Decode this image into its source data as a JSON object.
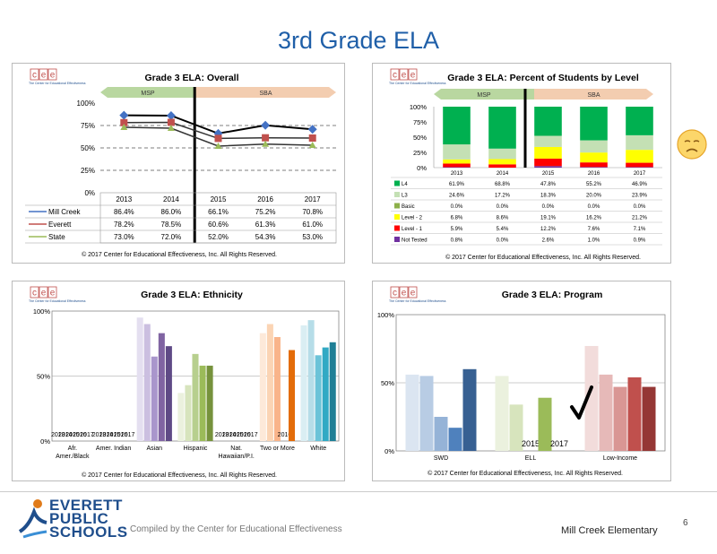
{
  "page_title": "3rd Grade ELA",
  "copyright": "© 2017 Center for Educational Effectiveness, Inc. All Rights Reserved.",
  "cee_logo_letters": [
    "c",
    "e",
    "e"
  ],
  "cee_logo_sub": "The Center for Educational Effectiveness",
  "footer": {
    "district_logo": [
      "EVERETT",
      "PUBLIC",
      "SCHOOLS"
    ],
    "compiled": "Compiled by the Center for Educational Effectiveness",
    "school": "Mill Creek Elementary",
    "page_number": "6"
  },
  "colors": {
    "title_blue": "#1f5fa8",
    "msp": "#b9d7a0",
    "sba": "#f3cdb0"
  },
  "chart_data": [
    {
      "type": "line",
      "title": "Grade 3 ELA: Overall",
      "bands": [
        "MSP",
        "SBA"
      ],
      "categories": [
        "2013",
        "2014",
        "2015",
        "2016",
        "2017"
      ],
      "ylim": [
        0,
        100
      ],
      "yticks": [
        "0%",
        "25%",
        "50%",
        "75%",
        "100%"
      ],
      "series": [
        {
          "name": "Mill Creek",
          "values": [
            86.4,
            86.0,
            66.1,
            75.2,
            70.8
          ],
          "labels": [
            "86.4%",
            "86.0%",
            "66.1%",
            "75.2%",
            "70.8%"
          ],
          "color": "#4472c4"
        },
        {
          "name": "Everett",
          "values": [
            78.2,
            78.5,
            60.6,
            61.3,
            61.0
          ],
          "labels": [
            "78.2%",
            "78.5%",
            "60.6%",
            "61.3%",
            "61.0%"
          ],
          "color": "#c0504d"
        },
        {
          "name": "State",
          "values": [
            73.0,
            72.0,
            52.0,
            54.3,
            53.0
          ],
          "labels": [
            "73.0%",
            "72.0%",
            "52.0%",
            "54.3%",
            "53.0%"
          ],
          "color": "#9bbb59"
        }
      ]
    },
    {
      "type": "bar",
      "stacked": true,
      "title": "Grade 3 ELA: Percent of Students by Level",
      "bands": [
        "MSP",
        "SBA"
      ],
      "categories": [
        "2013",
        "2014",
        "2015",
        "2016",
        "2017"
      ],
      "ylim": [
        0,
        100
      ],
      "yticks": [
        "0%",
        "25%",
        "50%",
        "75%",
        "100%"
      ],
      "series": [
        {
          "name": "L4",
          "values": [
            61.9,
            68.8,
            47.8,
            55.2,
            46.9
          ],
          "labels": [
            "61.9%",
            "68.8%",
            "47.8%",
            "55.2%",
            "46.9%"
          ],
          "color": "#00b050"
        },
        {
          "name": "L3",
          "values": [
            24.6,
            17.2,
            18.3,
            20.0,
            23.9
          ],
          "labels": [
            "24.6%",
            "17.2%",
            "18.3%",
            "20.0%",
            "23.9%"
          ],
          "color": "#c4e0b4"
        },
        {
          "name": "Basic",
          "values": [
            0.0,
            0.0,
            0.0,
            0.0,
            0.0
          ],
          "labels": [
            "0.0%",
            "0.0%",
            "0.0%",
            "0.0%",
            "0.0%"
          ],
          "color": "#8db04a"
        },
        {
          "name": "Level - 2",
          "values": [
            6.8,
            8.6,
            19.1,
            16.2,
            21.2
          ],
          "labels": [
            "6.8%",
            "8.6%",
            "19.1%",
            "16.2%",
            "21.2%"
          ],
          "color": "#ffff00"
        },
        {
          "name": "Level - 1",
          "values": [
            5.9,
            5.4,
            12.2,
            7.6,
            7.1
          ],
          "labels": [
            "5.9%",
            "5.4%",
            "12.2%",
            "7.6%",
            "7.1%"
          ],
          "color": "#ff0000"
        },
        {
          "name": "Not Tested",
          "values": [
            0.8,
            0.0,
            2.6,
            1.0,
            0.9
          ],
          "labels": [
            "0.8%",
            "0.0%",
            "2.6%",
            "1.0%",
            "0.9%"
          ],
          "color": "#7030a0"
        }
      ]
    },
    {
      "type": "bar",
      "title": "Grade 3 ELA: Ethnicity",
      "categories": [
        "Afr. Amer./Black",
        "Amer. Indian",
        "Asian",
        "Hispanic",
        "Nat. Hawaiian/P.I.",
        "Two or More",
        "White"
      ],
      "years": [
        "2013",
        "2014",
        "2015",
        "2016",
        "2017"
      ],
      "ylim": [
        0,
        100
      ],
      "yticks": [
        "0%",
        "50%",
        "100%"
      ],
      "groups": [
        {
          "values": [
            null,
            null,
            null,
            null,
            null
          ],
          "colors": [
            "#d9d9d9",
            "#bfbfbf",
            "#a6a6a6",
            "#8c8c8c",
            "#737373"
          ]
        },
        {
          "values": [
            null,
            null,
            null,
            null,
            null
          ],
          "colors": [
            "#d9d9d9",
            "#bfbfbf",
            "#a6a6a6",
            "#8c8c8c",
            "#737373"
          ]
        },
        {
          "values": [
            95,
            90,
            65,
            83,
            73
          ],
          "colors": [
            "#e4dff0",
            "#cbbfe0",
            "#a996cc",
            "#8064a2",
            "#5f4a86"
          ]
        },
        {
          "values": [
            37,
            43,
            67,
            58,
            58
          ],
          "colors": [
            "#ebf1de",
            "#d7e4bd",
            "#b7cf8e",
            "#9bbb59",
            "#76923c"
          ]
        },
        {
          "values": [
            null,
            null,
            null,
            null,
            null
          ],
          "colors": [
            "#d9d9d9",
            "#bfbfbf",
            "#a6a6a6",
            "#8c8c8c",
            "#737373"
          ]
        },
        {
          "values": [
            83,
            90,
            80,
            null,
            70
          ],
          "colors": [
            "#fde9d9",
            "#fbd4b4",
            "#f9b48a",
            "#f79646",
            "#e36c09"
          ]
        },
        {
          "values": [
            89,
            93,
            66,
            72,
            76
          ],
          "colors": [
            "#daeef3",
            "#b6dde8",
            "#6bc3d8",
            "#31a9c4",
            "#1f7f96"
          ]
        }
      ]
    },
    {
      "type": "bar",
      "title": "Grade 3 ELA: Program",
      "categories": [
        "SWD",
        "ELL",
        "Low-Income"
      ],
      "years": [
        "2013",
        "2014",
        "2015",
        "2016",
        "2017"
      ],
      "ylim": [
        0,
        100
      ],
      "yticks": [
        "0%",
        "50%",
        "100%"
      ],
      "groups": [
        {
          "values": [
            56,
            55,
            25,
            17,
            60
          ],
          "colors": [
            "#dbe5f1",
            "#b8cce4",
            "#95b3d7",
            "#4f81bd",
            "#376092"
          ]
        },
        {
          "values": [
            55,
            34,
            null,
            39,
            null
          ],
          "colors": [
            "#ebf1de",
            "#d7e4bd",
            "#c3d69b",
            "#9bbb59",
            "#76923c"
          ]
        },
        {
          "values": [
            77,
            56,
            47,
            54,
            47
          ],
          "colors": [
            "#f2dcdb",
            "#e6b9b8",
            "#d99694",
            "#c0504d",
            "#953735"
          ]
        }
      ]
    }
  ]
}
